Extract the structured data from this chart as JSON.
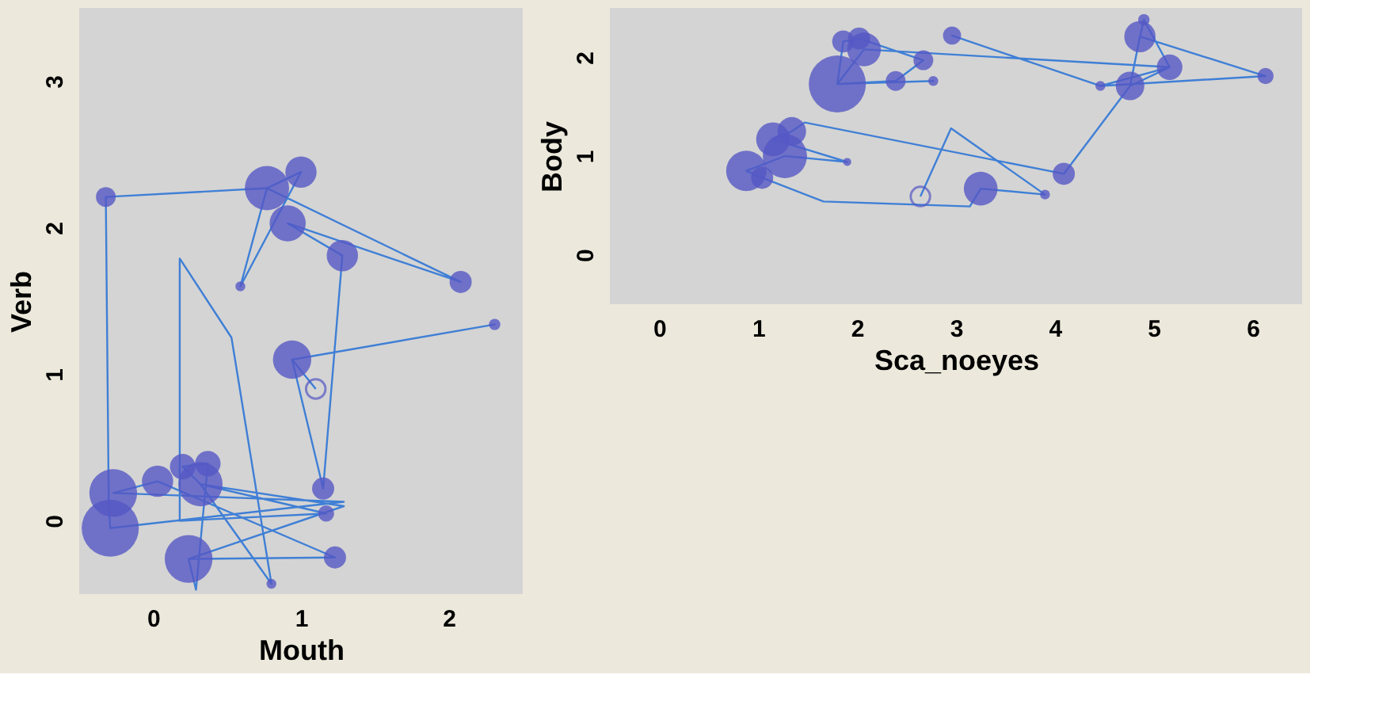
{
  "chart_data": [
    {
      "type": "bubble",
      "xlabel": "Mouth",
      "ylabel": "Verb",
      "xlim": [
        -0.5,
        2.5
      ],
      "ylim": [
        -0.5,
        3.5
      ],
      "xticks": [
        0,
        1,
        2
      ],
      "yticks": [
        0,
        1,
        2,
        3
      ],
      "series": [
        {
          "type": "line",
          "color": "#3f7fd6",
          "x": [
            1.1,
            0.94,
            2.31,
            0.94,
            1.15,
            1.28,
            0.91,
            2.08,
            0.77,
            1.0,
            0.59,
            0.77,
            -0.32,
            -0.3,
            -0.29,
            1.29,
            -0.27,
            0.03,
            1.23,
            0.24,
            0.29,
            0.37,
            0.2,
            0.32,
            1.17,
            0.18,
            0.18,
            0.53,
            0.8,
            0.32,
            1.29,
            0.24
          ],
          "values": [
            0.9,
            1.1,
            1.34,
            1.1,
            0.22,
            1.81,
            2.03,
            1.63,
            2.27,
            2.38,
            1.6,
            2.27,
            2.21,
            0.1,
            -0.05,
            0.13,
            0.19,
            0.27,
            -0.25,
            -0.26,
            -0.47,
            0.39,
            0.37,
            0.25,
            0.05,
            0.0,
            1.79,
            1.25,
            -0.43,
            0.25,
            0.1,
            -0.26
          ]
        },
        {
          "color": "#5558c4",
          "x": [
            -0.32,
            0.77,
            1.0,
            0.91,
            1.28,
            2.08,
            0.59,
            2.31,
            0.94,
            1.15,
            1.17,
            1.23,
            -0.27,
            -0.29,
            0.03,
            0.2,
            0.37,
            0.32,
            0.24,
            0.8
          ],
          "values": [
            2.21,
            2.27,
            2.38,
            2.03,
            1.81,
            1.63,
            1.6,
            1.34,
            1.1,
            0.22,
            0.05,
            -0.25,
            0.19,
            -0.05,
            0.27,
            0.37,
            0.39,
            0.25,
            -0.26,
            -0.43
          ],
          "sizes": [
            0.12,
            0.6,
            0.3,
            0.4,
            0.3,
            0.15,
            0.03,
            0.04,
            0.45,
            0.15,
            0.08,
            0.15,
            0.7,
            1.0,
            0.3,
            0.2,
            0.2,
            0.6,
            0.7,
            0.03
          ]
        },
        {
          "type": "scatter",
          "color": "#5558c4",
          "x": [
            1.1
          ],
          "values": [
            0.9
          ]
        }
      ]
    },
    {
      "type": "bubble",
      "xlabel": "Sca_noeyes",
      "ylabel": "Body",
      "xlim": [
        -0.5,
        6.5
      ],
      "ylim": [
        -0.5,
        2.5
      ],
      "xticks": [
        0,
        1,
        2,
        3,
        4,
        5,
        6
      ],
      "yticks": [
        0,
        1,
        2
      ],
      "series": [
        {
          "type": "line",
          "color": "#3f7fd6",
          "x": [
            2.64,
            2.95,
            3.9,
            3.25,
            3.14,
            1.66,
            1.04,
            0.88,
            1.27,
            1.9,
            1.15,
            1.34,
            1.47,
            4.09,
            4.76,
            4.86,
            4.9,
            5.16,
            4.46,
            2.96,
            4.46,
            6.13,
            4.86,
            4.76,
            5.16,
            2.07,
            1.8,
            2.77,
            1.8,
            2.39,
            2.67,
            2.02,
            1.86,
            1.8
          ],
          "values": [
            0.59,
            1.28,
            0.61,
            0.67,
            0.49,
            0.54,
            0.78,
            0.85,
            1.0,
            0.94,
            1.17,
            1.25,
            1.34,
            0.82,
            1.71,
            2.21,
            2.38,
            1.9,
            1.71,
            2.22,
            1.71,
            1.81,
            2.21,
            1.71,
            1.9,
            2.08,
            1.73,
            1.76,
            1.73,
            1.76,
            1.97,
            2.19,
            2.16,
            1.73
          ]
        },
        {
          "color": "#5558c4",
          "x": [
            1.86,
            2.02,
            2.07,
            1.8,
            2.39,
            2.67,
            2.77,
            2.96,
            4.86,
            4.9,
            5.16,
            4.76,
            4.46,
            6.13,
            4.09,
            3.9,
            3.25,
            1.34,
            1.15,
            1.27,
            0.88,
            1.04,
            1.9
          ],
          "values": [
            2.16,
            2.19,
            2.08,
            1.73,
            1.76,
            1.97,
            1.76,
            2.22,
            2.21,
            2.38,
            1.9,
            1.71,
            1.71,
            1.81,
            0.82,
            0.61,
            0.67,
            1.25,
            1.17,
            1.0,
            0.85,
            0.78,
            0.94
          ],
          "sizes": [
            0.15,
            0.15,
            0.35,
            1.0,
            0.12,
            0.12,
            0.03,
            0.1,
            0.3,
            0.04,
            0.2,
            0.25,
            0.03,
            0.08,
            0.15,
            0.03,
            0.35,
            0.25,
            0.35,
            0.6,
            0.5,
            0.15,
            0.02
          ]
        },
        {
          "type": "scatter",
          "color": "#5558c4",
          "x": [
            2.64
          ],
          "values": [
            0.59
          ]
        }
      ]
    }
  ]
}
